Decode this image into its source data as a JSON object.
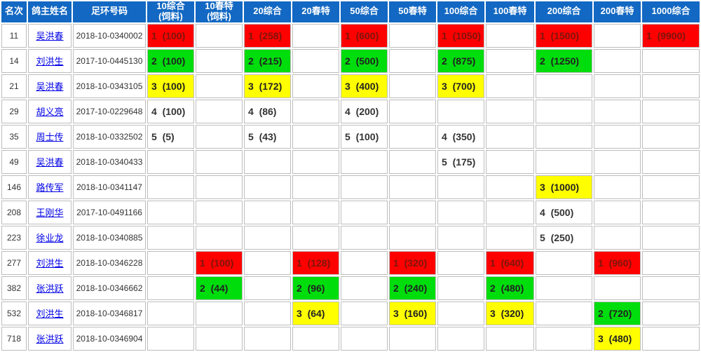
{
  "colors": {
    "header_bg": "#1268c3",
    "red": "#ff0000",
    "green": "#00dd0c",
    "yellow": "#ffff00",
    "link": "#0000e6",
    "red_cell_text": "#7c150d",
    "grid_line": "#bdbdbd"
  },
  "table": {
    "columns": [
      {
        "label": "名次"
      },
      {
        "label": "鸽主姓名"
      },
      {
        "label": "足环号码"
      },
      {
        "label": "10综合\n(饲料)"
      },
      {
        "label": "10春特\n(饲料)"
      },
      {
        "label": "20综合"
      },
      {
        "label": "20春特"
      },
      {
        "label": "50综合"
      },
      {
        "label": "50春特"
      },
      {
        "label": "100综合"
      },
      {
        "label": "100春特"
      },
      {
        "label": "200综合"
      },
      {
        "label": "200春特"
      },
      {
        "label": "1000综合"
      }
    ],
    "rows": [
      {
        "rank": "11",
        "owner": "吴洪春",
        "ring": "2018-10-0340002",
        "prizes": [
          {
            "text": "1  (100)",
            "bg": "red"
          },
          null,
          {
            "text": "1  (258)",
            "bg": "red"
          },
          null,
          {
            "text": "1  (600)",
            "bg": "red"
          },
          null,
          {
            "text": "1  (1050)",
            "bg": "red"
          },
          null,
          {
            "text": "1  (1500)",
            "bg": "red"
          },
          null,
          {
            "text": "1  (9900)",
            "bg": "red"
          }
        ]
      },
      {
        "rank": "14",
        "owner": "刘洪生",
        "ring": "2017-10-0445130",
        "prizes": [
          {
            "text": "2  (100)",
            "bg": "green"
          },
          null,
          {
            "text": "2  (215)",
            "bg": "green"
          },
          null,
          {
            "text": "2  (500)",
            "bg": "green"
          },
          null,
          {
            "text": "2  (875)",
            "bg": "green"
          },
          null,
          {
            "text": "2  (1250)",
            "bg": "green"
          },
          null,
          null
        ]
      },
      {
        "rank": "21",
        "owner": "吴洪春",
        "ring": "2018-10-0343105",
        "prizes": [
          {
            "text": "3  (100)",
            "bg": "yellow"
          },
          null,
          {
            "text": "3  (172)",
            "bg": "yellow"
          },
          null,
          {
            "text": "3  (400)",
            "bg": "yellow"
          },
          null,
          {
            "text": "3  (700)",
            "bg": "yellow"
          },
          null,
          null,
          null,
          null
        ]
      },
      {
        "rank": "29",
        "owner": "胡义亮",
        "ring": "2017-10-0229648",
        "prizes": [
          {
            "text": "4  (100)"
          },
          null,
          {
            "text": "4  (86)"
          },
          null,
          {
            "text": "4  (200)"
          },
          null,
          null,
          null,
          null,
          null,
          null
        ]
      },
      {
        "rank": "35",
        "owner": "周士传",
        "ring": "2018-10-0332502",
        "prizes": [
          {
            "text": "5  (5)"
          },
          null,
          {
            "text": "5  (43)"
          },
          null,
          {
            "text": "5  (100)"
          },
          null,
          {
            "text": "4  (350)"
          },
          null,
          null,
          null,
          null
        ]
      },
      {
        "rank": "49",
        "owner": "吴洪春",
        "ring": "2018-10-0340433",
        "prizes": [
          null,
          null,
          null,
          null,
          null,
          null,
          {
            "text": "5  (175)"
          },
          null,
          null,
          null,
          null
        ]
      },
      {
        "rank": "146",
        "owner": "路传军",
        "ring": "2018-10-0341147",
        "prizes": [
          null,
          null,
          null,
          null,
          null,
          null,
          null,
          null,
          {
            "text": "3  (1000)",
            "bg": "yellow"
          },
          null,
          null
        ]
      },
      {
        "rank": "208",
        "owner": "王刚华",
        "ring": "2017-10-0491166",
        "prizes": [
          null,
          null,
          null,
          null,
          null,
          null,
          null,
          null,
          {
            "text": "4  (500)"
          },
          null,
          null
        ]
      },
      {
        "rank": "223",
        "owner": "徐业龙",
        "ring": "2018-10-0340885",
        "prizes": [
          null,
          null,
          null,
          null,
          null,
          null,
          null,
          null,
          {
            "text": "5  (250)"
          },
          null,
          null
        ]
      },
      {
        "rank": "277",
        "owner": "刘洪生",
        "ring": "2018-10-0346228",
        "prizes": [
          null,
          {
            "text": "1  (100)",
            "bg": "red"
          },
          null,
          {
            "text": "1  (128)",
            "bg": "red"
          },
          null,
          {
            "text": "1  (320)",
            "bg": "red"
          },
          null,
          {
            "text": "1  (640)",
            "bg": "red"
          },
          null,
          {
            "text": "1  (960)",
            "bg": "red"
          },
          null
        ]
      },
      {
        "rank": "382",
        "owner": "张洪跃",
        "ring": "2018-10-0346662",
        "prizes": [
          null,
          {
            "text": "2  (44)",
            "bg": "green"
          },
          null,
          {
            "text": "2  (96)",
            "bg": "green"
          },
          null,
          {
            "text": "2  (240)",
            "bg": "green"
          },
          null,
          {
            "text": "2  (480)",
            "bg": "green"
          },
          null,
          null,
          null
        ]
      },
      {
        "rank": "532",
        "owner": "刘洪生",
        "ring": "2018-10-0346817",
        "prizes": [
          null,
          null,
          null,
          {
            "text": "3  (64)",
            "bg": "yellow"
          },
          null,
          {
            "text": "3  (160)",
            "bg": "yellow"
          },
          null,
          {
            "text": "3  (320)",
            "bg": "yellow"
          },
          null,
          {
            "text": "2  (720)",
            "bg": "green"
          },
          null
        ]
      },
      {
        "rank": "718",
        "owner": "张洪跃",
        "ring": "2018-10-0346904",
        "prizes": [
          null,
          null,
          null,
          null,
          null,
          null,
          null,
          null,
          null,
          {
            "text": "3  (480)",
            "bg": "yellow"
          },
          null
        ]
      }
    ]
  }
}
